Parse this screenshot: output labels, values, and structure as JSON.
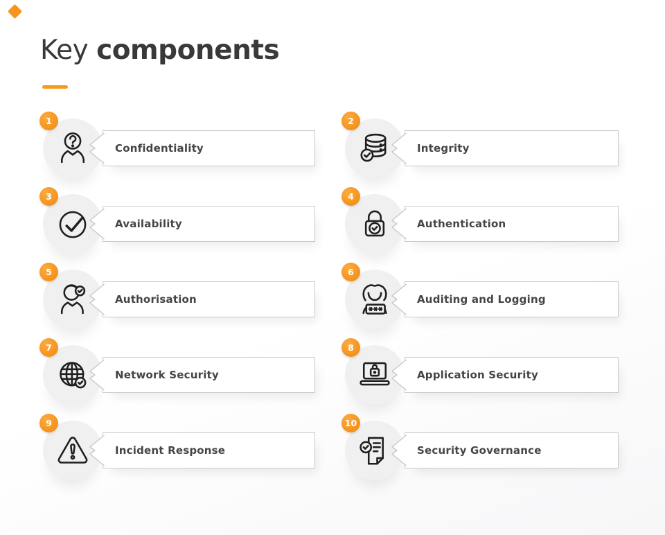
{
  "page": {
    "title_light": "Key",
    "title_bold": "components"
  },
  "accent_color": "#F7941E",
  "items": [
    {
      "number": "1",
      "label": "Confidentiality",
      "icon": "anonymous-user-icon"
    },
    {
      "number": "2",
      "label": "Integrity",
      "icon": "database-check-icon"
    },
    {
      "number": "3",
      "label": "Availability",
      "icon": "check-circle-icon"
    },
    {
      "number": "4",
      "label": "Authentication",
      "icon": "lock-check-icon"
    },
    {
      "number": "5",
      "label": "Authorisation",
      "icon": "user-check-icon"
    },
    {
      "number": "6",
      "label": "Auditing and Logging",
      "icon": "user-password-icon"
    },
    {
      "number": "7",
      "label": "Network Security",
      "icon": "globe-check-icon"
    },
    {
      "number": "8",
      "label": "Application Security",
      "icon": "laptop-lock-icon"
    },
    {
      "number": "9",
      "label": "Incident Response",
      "icon": "alert-triangle-icon"
    },
    {
      "number": "10",
      "label": "Security Governance",
      "icon": "document-check-icon"
    }
  ]
}
